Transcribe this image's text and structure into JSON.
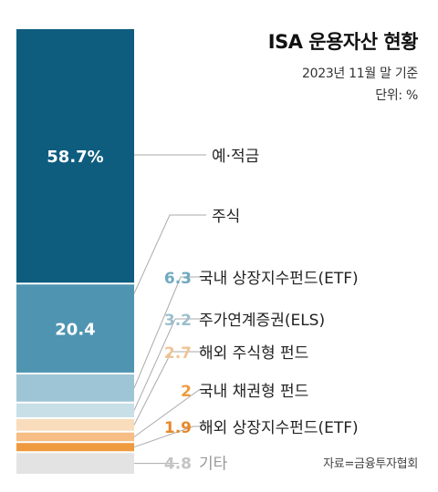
{
  "header": {
    "title": "ISA 운용자산 현황",
    "date": "2023년 11월 말 기준",
    "unit": "단위: %"
  },
  "source": "자료=금융투자협회",
  "chart_data": {
    "type": "bar",
    "stacked": true,
    "total": 100,
    "title": "ISA 운용자산 현황",
    "segments": [
      {
        "label": "예·적금",
        "value": 58.7,
        "value_text": "58.7%",
        "color": "#0e5d7f"
      },
      {
        "label": "주식",
        "value": 20.4,
        "value_text": "20.4",
        "color": "#4f95b1"
      },
      {
        "label": "국내 상장지수펀드(ETF)",
        "value": 6.3,
        "value_text": "6.3",
        "color": "#9ec5d5"
      },
      {
        "label": "주가연계증권(ELS)",
        "value": 3.2,
        "value_text": "3.2",
        "color": "#c9dfe7"
      },
      {
        "label": "해외 주식형 펀드",
        "value": 2.7,
        "value_text": "2.7",
        "color": "#f8dcbc"
      },
      {
        "label": "국내 채권형 펀드",
        "value": 2,
        "value_text": "2",
        "color": "#f6bd85"
      },
      {
        "label": "해외 상장지수펀드(ETF)",
        "value": 1.9,
        "value_text": "1.9",
        "color": "#ef9a3e"
      },
      {
        "label": "기타",
        "value": 4.8,
        "value_text": "4.8",
        "color": "#e3e3e3"
      }
    ],
    "value_colors": [
      "#0e5d7f",
      "#4f95b1",
      "#6fa9c0",
      "#9bbfcd",
      "#f0c492",
      "#ef9a3e",
      "#e8882a",
      "#c4c4c4"
    ]
  }
}
